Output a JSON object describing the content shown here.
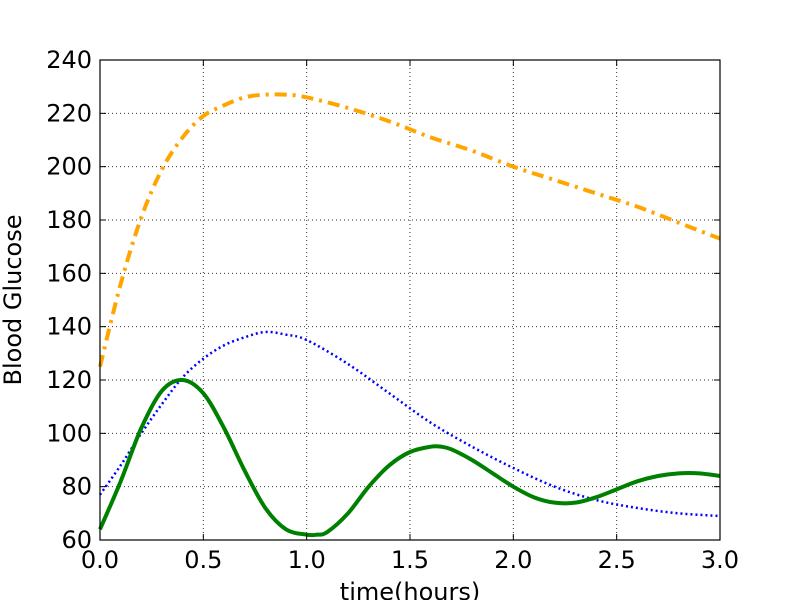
{
  "chart_data": {
    "type": "line",
    "xlabel": "time(hours)",
    "ylabel": "Blood Glucose",
    "xlim": [
      0.0,
      3.0
    ],
    "ylim": [
      60,
      240
    ],
    "xticks": [
      "0.0",
      "0.5",
      "1.0",
      "1.5",
      "2.0",
      "2.5",
      "3.0"
    ],
    "yticks": [
      "60",
      "80",
      "100",
      "120",
      "140",
      "160",
      "180",
      "200",
      "220",
      "240"
    ],
    "grid": true,
    "series": [
      {
        "color": "#ffa500",
        "style": "dashdot",
        "x": [
          0.0,
          0.1,
          0.2,
          0.3,
          0.4,
          0.5,
          0.6,
          0.7,
          0.8,
          0.9,
          1.0,
          1.2,
          1.4,
          1.6,
          1.8,
          2.0,
          2.2,
          2.4,
          2.6,
          2.8,
          3.0
        ],
        "y": [
          125,
          156,
          181,
          199,
          211,
          219,
          223,
          226,
          227,
          227,
          226,
          222,
          217,
          211,
          206,
          200,
          195,
          190,
          185,
          179,
          173
        ]
      },
      {
        "color": "#0000ff",
        "style": "dotted",
        "x": [
          0.0,
          0.1,
          0.2,
          0.3,
          0.4,
          0.5,
          0.6,
          0.7,
          0.8,
          0.9,
          1.0,
          1.2,
          1.4,
          1.6,
          1.8,
          2.0,
          2.2,
          2.4,
          2.6,
          2.8,
          3.0
        ],
        "y": [
          77,
          88,
          100,
          111,
          121,
          128,
          133,
          136,
          138,
          137,
          135,
          126,
          115,
          104,
          95,
          87,
          80,
          75,
          72,
          70,
          69
        ]
      },
      {
        "color": "#008000",
        "style": "solid",
        "x": [
          0.0,
          0.1,
          0.2,
          0.3,
          0.4,
          0.5,
          0.6,
          0.7,
          0.8,
          0.9,
          1.0,
          1.05,
          1.1,
          1.2,
          1.3,
          1.4,
          1.5,
          1.6,
          1.65,
          1.7,
          1.8,
          1.9,
          2.0,
          2.1,
          2.2,
          2.3,
          2.4,
          2.5,
          2.6,
          2.7,
          2.8,
          2.9,
          3.0
        ],
        "y": [
          64,
          82,
          102,
          116,
          120,
          115,
          102,
          86,
          72,
          64,
          62,
          62,
          63,
          70,
          80,
          88,
          93,
          95,
          95,
          94,
          90,
          85,
          80,
          76,
          74,
          74,
          76,
          79,
          82,
          84,
          85,
          85,
          84
        ]
      }
    ]
  }
}
